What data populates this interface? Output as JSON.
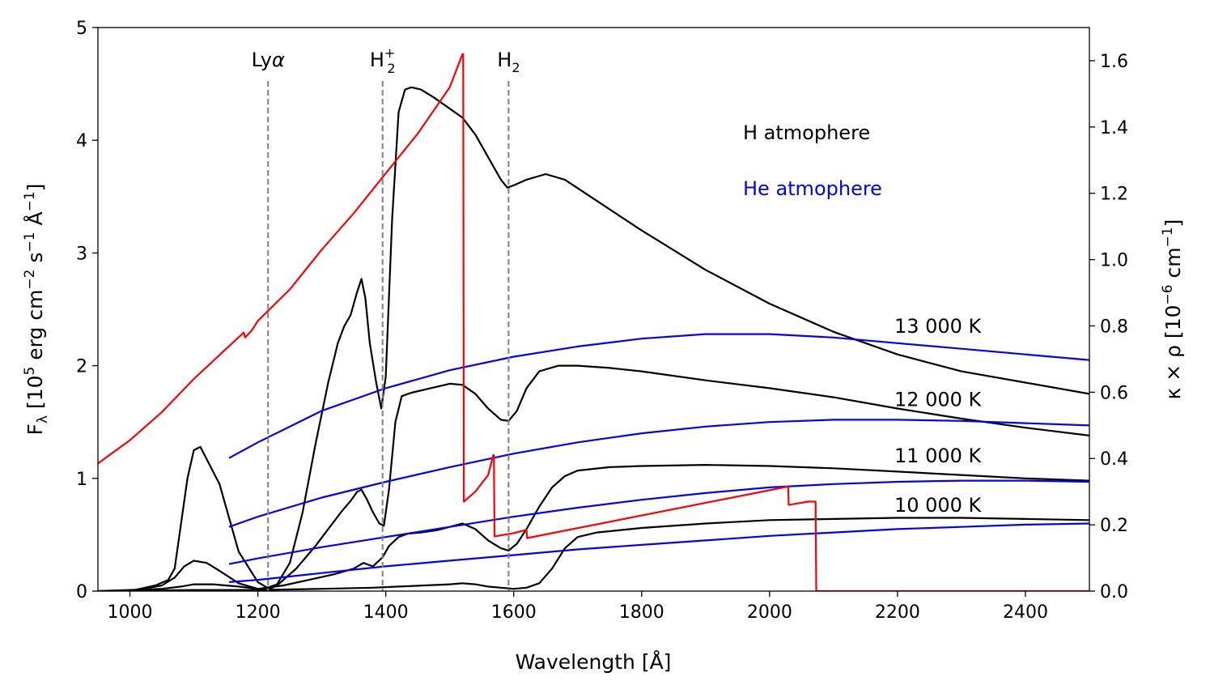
{
  "chart_data": {
    "type": "line",
    "xlabel_text": "Wavelength [Å]",
    "ylabel_main": "F",
    "ylabel_sub": "λ",
    "ylabel_pre": " [10",
    "ylabel_exp1": "5",
    "ylabel_mid1": " erg cm",
    "ylabel_exp2": "−2",
    "ylabel_mid2": " s",
    "ylabel_exp3": "−1",
    "ylabel_mid3": " Å",
    "ylabel_exp4": "−1",
    "ylabel_end": "]",
    "y2label_pre": "κ × ρ [10",
    "y2label_exp1": "−6",
    "y2label_mid": " cm",
    "y2label_exp2": "−1",
    "y2label_end": "]",
    "xlim": [
      950,
      2500
    ],
    "ylim": [
      0,
      5
    ],
    "y2lim": [
      0,
      1.7
    ],
    "x_ticks": [
      "1000",
      "1200",
      "1400",
      "1600",
      "1800",
      "2000",
      "2200",
      "2400"
    ],
    "x_tick_values": [
      1000,
      1200,
      1400,
      1600,
      1800,
      2000,
      2200,
      2400
    ],
    "y_ticks": [
      "0",
      "1",
      "2",
      "3",
      "4",
      "5"
    ],
    "y_tick_values": [
      0,
      1,
      2,
      3,
      4,
      5
    ],
    "y2_ticks": [
      "0.0",
      "0.2",
      "0.4",
      "0.6",
      "0.8",
      "1.0",
      "1.2",
      "1.4",
      "1.6"
    ],
    "y2_tick_values": [
      0,
      0.2,
      0.4,
      0.6,
      0.8,
      1.0,
      1.2,
      1.4,
      1.6
    ],
    "vlines": [
      {
        "x": 1216,
        "label": "Lyα",
        "label_main": "Ly",
        "label_sub": "",
        "label_sup": "",
        "label_greek": "α"
      },
      {
        "x": 1395,
        "label": "H2+",
        "label_main": "H",
        "label_sub": "2",
        "label_sup": "+",
        "label_greek": ""
      },
      {
        "x": 1592,
        "label": "H2",
        "label_main": "H",
        "label_sub": "2",
        "label_sup": "",
        "label_greek": ""
      }
    ],
    "legend_h": "H atmophere",
    "legend_he": "He atmophere",
    "temperature_labels": [
      {
        "text": "13 000 K",
        "x": 2195,
        "y": 2.35
      },
      {
        "text": "12 000 K",
        "x": 2195,
        "y": 1.7
      },
      {
        "text": "11 000 K",
        "x": 2195,
        "y": 1.2
      },
      {
        "text": "10 000 K",
        "x": 2195,
        "y": 0.76
      }
    ],
    "colors": {
      "h": "#000000",
      "he": "#0000ff",
      "opacity": "#ff0000",
      "vline": "#808080"
    },
    "series": [
      {
        "name": "H 13000 K",
        "color": "#000000",
        "axis": "left",
        "x": [
          950,
          1000,
          1040,
          1060,
          1070,
          1080,
          1090,
          1100,
          1110,
          1140,
          1170,
          1200,
          1215,
          1230,
          1250,
          1270,
          1290,
          1310,
          1325,
          1335,
          1345,
          1355,
          1362,
          1368,
          1375,
          1385,
          1393,
          1400,
          1410,
          1420,
          1430,
          1440,
          1455,
          1475,
          1500,
          1520,
          1540,
          1560,
          1580,
          1590,
          1600,
          1620,
          1650,
          1680,
          1720,
          1800,
          1900,
          2000,
          2100,
          2200,
          2300,
          2400,
          2500
        ],
        "y": [
          0,
          0,
          0.05,
          0.1,
          0.2,
          0.6,
          1.0,
          1.25,
          1.28,
          0.95,
          0.35,
          0.08,
          0.03,
          0.06,
          0.25,
          0.7,
          1.3,
          1.85,
          2.2,
          2.35,
          2.45,
          2.65,
          2.77,
          2.6,
          2.2,
          1.85,
          1.62,
          1.9,
          3.3,
          4.25,
          4.45,
          4.47,
          4.45,
          4.38,
          4.28,
          4.2,
          4.05,
          3.85,
          3.65,
          3.58,
          3.6,
          3.65,
          3.7,
          3.65,
          3.5,
          3.2,
          2.85,
          2.55,
          2.3,
          2.1,
          1.95,
          1.85,
          1.75
        ]
      },
      {
        "name": "H 12000 K",
        "color": "#000000",
        "axis": "left",
        "x": [
          950,
          1000,
          1050,
          1070,
          1085,
          1100,
          1120,
          1140,
          1170,
          1200,
          1215,
          1230,
          1260,
          1290,
          1310,
          1330,
          1345,
          1355,
          1362,
          1370,
          1380,
          1390,
          1397,
          1405,
          1415,
          1425,
          1440,
          1470,
          1500,
          1520,
          1540,
          1560,
          1580,
          1592,
          1605,
          1620,
          1640,
          1670,
          1700,
          1750,
          1800,
          1900,
          2000,
          2100,
          2200,
          2300,
          2400,
          2500
        ],
        "y": [
          0,
          0,
          0.05,
          0.12,
          0.22,
          0.27,
          0.25,
          0.18,
          0.07,
          0.02,
          0.01,
          0.05,
          0.2,
          0.4,
          0.55,
          0.7,
          0.8,
          0.88,
          0.9,
          0.82,
          0.7,
          0.6,
          0.58,
          0.9,
          1.5,
          1.73,
          1.76,
          1.8,
          1.84,
          1.83,
          1.75,
          1.62,
          1.52,
          1.51,
          1.6,
          1.8,
          1.95,
          2.0,
          2.0,
          1.98,
          1.95,
          1.87,
          1.8,
          1.72,
          1.62,
          1.53,
          1.45,
          1.38
        ]
      },
      {
        "name": "H 11000 K",
        "color": "#000000",
        "axis": "left",
        "x": [
          950,
          1050,
          1080,
          1100,
          1130,
          1170,
          1200,
          1240,
          1280,
          1320,
          1350,
          1365,
          1380,
          1395,
          1405,
          1420,
          1435,
          1455,
          1480,
          1500,
          1520,
          1540,
          1560,
          1580,
          1592,
          1605,
          1620,
          1640,
          1660,
          1680,
          1700,
          1750,
          1800,
          1900,
          2000,
          2100,
          2200,
          2300,
          2400,
          2500
        ],
        "y": [
          0,
          0.02,
          0.04,
          0.06,
          0.06,
          0.04,
          0.02,
          0.05,
          0.1,
          0.15,
          0.2,
          0.25,
          0.22,
          0.3,
          0.4,
          0.48,
          0.51,
          0.52,
          0.54,
          0.57,
          0.6,
          0.55,
          0.45,
          0.38,
          0.36,
          0.42,
          0.55,
          0.75,
          0.92,
          1.02,
          1.07,
          1.1,
          1.11,
          1.12,
          1.11,
          1.09,
          1.06,
          1.03,
          1.0,
          0.98
        ]
      },
      {
        "name": "H 10000 K",
        "color": "#000000",
        "axis": "left",
        "x": [
          950,
          1100,
          1200,
          1300,
          1380,
          1420,
          1460,
          1500,
          1520,
          1540,
          1560,
          1580,
          1600,
          1620,
          1640,
          1660,
          1680,
          1700,
          1730,
          1800,
          1900,
          2000,
          2100,
          2200,
          2300,
          2400,
          2500
        ],
        "y": [
          0,
          0.01,
          0.01,
          0.02,
          0.03,
          0.04,
          0.05,
          0.06,
          0.07,
          0.06,
          0.04,
          0.03,
          0.02,
          0.03,
          0.07,
          0.2,
          0.38,
          0.48,
          0.52,
          0.56,
          0.6,
          0.63,
          0.64,
          0.65,
          0.65,
          0.64,
          0.63
        ]
      },
      {
        "name": "He 13000 K",
        "color": "#0000ff",
        "axis": "left",
        "x": [
          1155,
          1200,
          1300,
          1400,
          1500,
          1600,
          1700,
          1800,
          1900,
          2000,
          2100,
          2200,
          2300,
          2400,
          2500
        ],
        "y": [
          1.18,
          1.32,
          1.6,
          1.8,
          1.96,
          2.08,
          2.17,
          2.24,
          2.28,
          2.28,
          2.25,
          2.2,
          2.15,
          2.1,
          2.05
        ]
      },
      {
        "name": "He 12000 K",
        "color": "#0000ff",
        "axis": "left",
        "x": [
          1155,
          1200,
          1300,
          1400,
          1500,
          1600,
          1700,
          1800,
          1900,
          2000,
          2100,
          2200,
          2300,
          2400,
          2500
        ],
        "y": [
          0.57,
          0.66,
          0.83,
          0.97,
          1.1,
          1.22,
          1.32,
          1.4,
          1.46,
          1.5,
          1.52,
          1.52,
          1.51,
          1.49,
          1.47
        ]
      },
      {
        "name": "He 11000 K",
        "color": "#0000ff",
        "axis": "left",
        "x": [
          1155,
          1200,
          1300,
          1400,
          1500,
          1600,
          1700,
          1800,
          1900,
          2000,
          2100,
          2200,
          2300,
          2400,
          2500
        ],
        "y": [
          0.24,
          0.29,
          0.39,
          0.48,
          0.57,
          0.66,
          0.74,
          0.81,
          0.87,
          0.92,
          0.95,
          0.97,
          0.98,
          0.98,
          0.97
        ]
      },
      {
        "name": "He 10000 K",
        "color": "#0000ff",
        "axis": "left",
        "x": [
          1155,
          1200,
          1300,
          1400,
          1500,
          1600,
          1700,
          1800,
          1900,
          2000,
          2100,
          2200,
          2300,
          2400,
          2500
        ],
        "y": [
          0.08,
          0.1,
          0.16,
          0.22,
          0.27,
          0.32,
          0.37,
          0.41,
          0.45,
          0.49,
          0.52,
          0.55,
          0.57,
          0.59,
          0.6
        ]
      },
      {
        "name": "Opacity",
        "color": "#ff0000",
        "axis": "right",
        "x": [
          950,
          1000,
          1050,
          1100,
          1150,
          1178,
          1180,
          1190,
          1200,
          1250,
          1300,
          1350,
          1400,
          1450,
          1500,
          1520,
          1521,
          1522,
          1540,
          1560,
          1568,
          1569,
          1570,
          1600,
          1620,
          1621,
          2028,
          2029,
          2030,
          2060,
          2072,
          2073,
          2500
        ],
        "y": [
          0.385,
          0.455,
          0.54,
          0.64,
          0.73,
          0.78,
          0.765,
          0.785,
          0.815,
          0.91,
          1.03,
          1.14,
          1.26,
          1.38,
          1.52,
          1.62,
          1.62,
          0.27,
          0.3,
          0.35,
          0.41,
          0.41,
          0.165,
          0.175,
          0.185,
          0.16,
          0.315,
          0.315,
          0.26,
          0.27,
          0.27,
          0,
          0
        ]
      }
    ]
  }
}
